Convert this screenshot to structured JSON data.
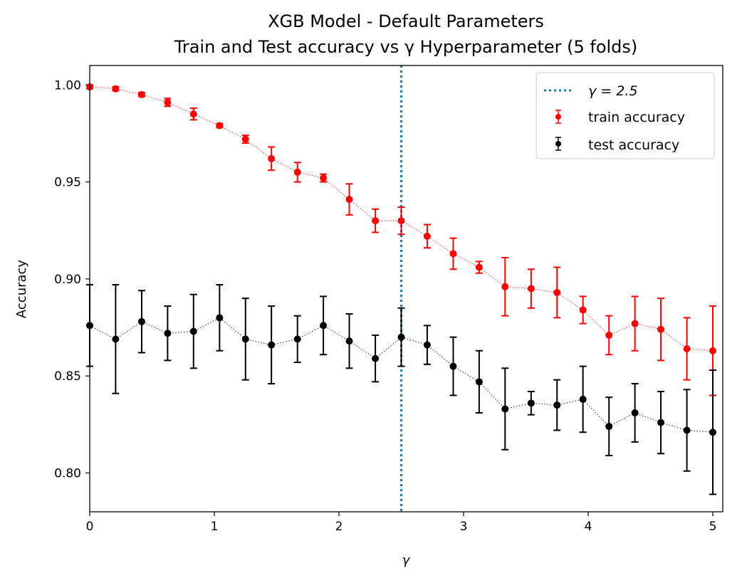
{
  "chart_data": {
    "type": "scatter",
    "title": "XGB Model - Default Parameters",
    "subtitle": "Train and Test accuracy vs γ Hyperparameter (5 folds)",
    "xlabel": "γ",
    "ylabel": "Accuracy",
    "xlim": [
      0,
      5.08
    ],
    "ylim": [
      0.78,
      1.01
    ],
    "xticks": [
      0,
      1,
      2,
      3,
      4,
      5
    ],
    "xtick_labels": [
      "0",
      "1",
      "2",
      "3",
      "4",
      "5"
    ],
    "yticks": [
      0.8,
      0.85,
      0.9,
      0.95,
      1.0
    ],
    "ytick_labels": [
      "0.80",
      "0.85",
      "0.90",
      "0.95",
      "1.00"
    ],
    "grid": false,
    "legend_position": "top-right",
    "vline": {
      "x": 2.5,
      "label": "γ = 2.5",
      "color": "#1f77b4",
      "style": "dotted"
    },
    "x": [
      0,
      0.208,
      0.417,
      0.625,
      0.833,
      1.042,
      1.25,
      1.458,
      1.667,
      1.875,
      2.083,
      2.292,
      2.5,
      2.708,
      2.917,
      3.125,
      3.333,
      3.542,
      3.75,
      3.958,
      4.167,
      4.375,
      4.583,
      4.792,
      5.0
    ],
    "series": [
      {
        "name": "train accuracy",
        "color": "#ff0000",
        "values": [
          0.999,
          0.998,
          0.995,
          0.991,
          0.985,
          0.979,
          0.972,
          0.962,
          0.955,
          0.952,
          0.941,
          0.93,
          0.93,
          0.922,
          0.913,
          0.906,
          0.896,
          0.895,
          0.893,
          0.884,
          0.871,
          0.877,
          0.874,
          0.864,
          0.863
        ],
        "errors": [
          0.001,
          0.001,
          0.001,
          0.002,
          0.003,
          0.001,
          0.002,
          0.006,
          0.005,
          0.002,
          0.008,
          0.006,
          0.007,
          0.006,
          0.008,
          0.003,
          0.015,
          0.01,
          0.013,
          0.007,
          0.01,
          0.014,
          0.016,
          0.016,
          0.023
        ]
      },
      {
        "name": "test accuracy",
        "color": "#000000",
        "values": [
          0.876,
          0.869,
          0.878,
          0.872,
          0.873,
          0.88,
          0.869,
          0.866,
          0.869,
          0.876,
          0.868,
          0.859,
          0.87,
          0.866,
          0.855,
          0.847,
          0.833,
          0.836,
          0.835,
          0.838,
          0.824,
          0.831,
          0.826,
          0.822,
          0.821
        ],
        "errors": [
          0.021,
          0.028,
          0.016,
          0.014,
          0.019,
          0.017,
          0.021,
          0.02,
          0.012,
          0.015,
          0.014,
          0.012,
          0.015,
          0.01,
          0.015,
          0.016,
          0.021,
          0.006,
          0.013,
          0.017,
          0.015,
          0.015,
          0.016,
          0.021,
          0.032
        ]
      }
    ]
  }
}
